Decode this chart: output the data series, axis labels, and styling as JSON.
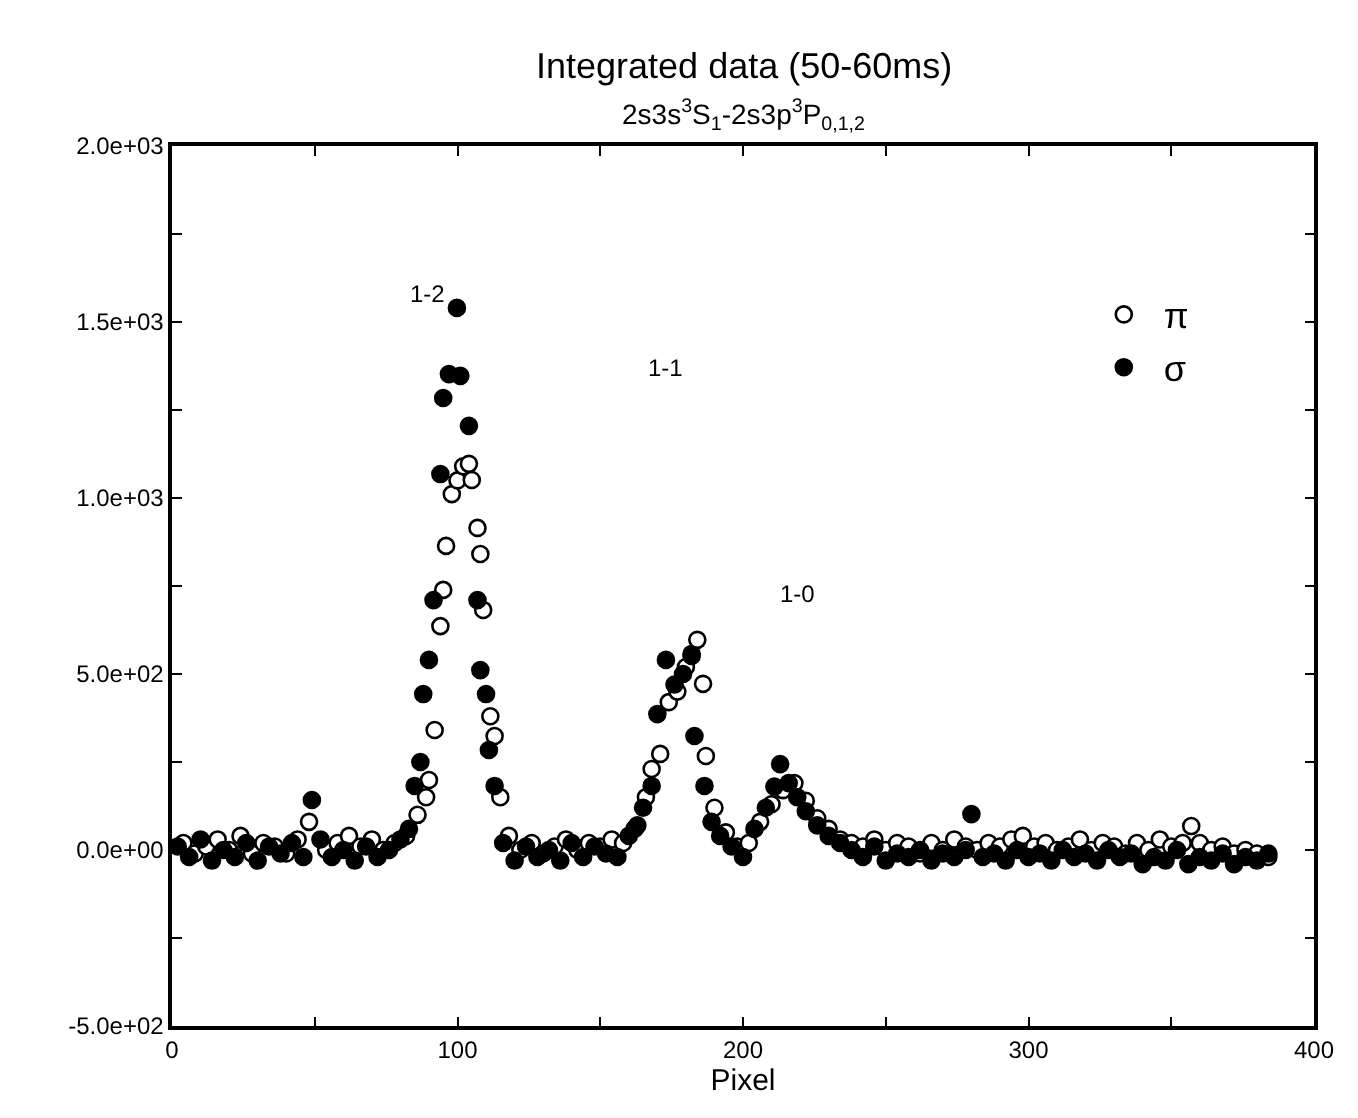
{
  "chart_data": {
    "type": "scatter",
    "title": "Integrated data (50-60ms)",
    "subtitle": "2s3s$^{3}$S$_{1}$-2s3p$^{3}$P$_{0,1,2}$",
    "xlabel": "Pixel",
    "xlim": [
      0,
      400
    ],
    "ylim": [
      -500,
      2000
    ],
    "xticks": [
      0,
      {
        "value": 50,
        "label": null
      },
      100,
      {
        "value": 150,
        "label": null
      },
      200,
      {
        "value": 250,
        "label": null
      },
      300,
      {
        "value": 350,
        "label": null
      },
      400
    ],
    "yticks": [
      {
        "value": -500,
        "label": "-5.0e+02"
      },
      {
        "value": -250,
        "label": null
      },
      {
        "value": 0,
        "label": "0.0e+00"
      },
      {
        "value": 250,
        "label": null
      },
      {
        "value": 500,
        "label": "5.0e+02"
      },
      {
        "value": 750,
        "label": null
      },
      {
        "value": 1000,
        "label": "1.0e+03"
      },
      {
        "value": 1250,
        "label": null
      },
      {
        "value": 1500,
        "label": "1.5e+03"
      },
      {
        "value": 1750,
        "label": null
      },
      {
        "value": 2000,
        "label": "2.0e+03"
      }
    ],
    "legend": "top right",
    "marker": "circle",
    "annotations": [
      "1-2",
      "1-1",
      "1-0"
    ],
    "series": [
      {
        "name": "π",
        "color": "#ffffff",
        "x": [
          4,
          8,
          12,
          16,
          20,
          24,
          28,
          32,
          36,
          40,
          44,
          48,
          54,
          58,
          62,
          66,
          70,
          74,
          78,
          82,
          86,
          89,
          90,
          92,
          94,
          95,
          96,
          98,
          100,
          102,
          104,
          105,
          107,
          108,
          109,
          111.5,
          113,
          115,
          118,
          122,
          126,
          130,
          134,
          138,
          142,
          146,
          150,
          154,
          158,
          162,
          166,
          168,
          171,
          174,
          177,
          180,
          182,
          184,
          186,
          187,
          190,
          194,
          198,
          202,
          206,
          210,
          214,
          218,
          222,
          226,
          230,
          234,
          238,
          242,
          246,
          250,
          254,
          258,
          262,
          266,
          270,
          274,
          278,
          282,
          286,
          290,
          294,
          298,
          302,
          306,
          310,
          314,
          318,
          322,
          326,
          330,
          334,
          338,
          342,
          346,
          350,
          354,
          357,
          360,
          364,
          368,
          372,
          376,
          380,
          384
        ],
        "values": [
          20,
          -10,
          10,
          30,
          0,
          40,
          -10,
          20,
          10,
          -10,
          30,
          80,
          0,
          20,
          40,
          10,
          30,
          0,
          20,
          40,
          100,
          150,
          199,
          341,
          636,
          739,
          864,
          1011,
          1050,
          1090,
          1097,
          1051,
          915,
          841,
          682,
          380,
          324,
          150,
          40,
          0,
          20,
          -10,
          10,
          30,
          0,
          20,
          10,
          30,
          20,
          60,
          150,
          230,
          273,
          420,
          450,
          520,
          557,
          597,
          472,
          267,
          120,
          50,
          10,
          20,
          80,
          130,
          170,
          190,
          140,
          90,
          60,
          30,
          20,
          10,
          30,
          0,
          20,
          10,
          -10,
          20,
          0,
          30,
          10,
          0,
          20,
          10,
          30,
          40,
          10,
          20,
          0,
          10,
          30,
          0,
          20,
          10,
          -10,
          20,
          0,
          30,
          10,
          20,
          68,
          20,
          0,
          10,
          -10,
          0,
          -10,
          -20
        ]
      },
      {
        "name": "σ",
        "color": "#000000",
        "x": [
          2,
          6,
          10,
          14,
          18,
          22,
          26,
          30,
          34,
          38,
          42,
          46,
          49,
          52,
          56,
          60,
          64,
          68,
          72,
          76,
          80,
          83,
          85,
          87,
          88,
          90,
          91.6,
          94,
          95,
          97,
          99.8,
          101,
          104,
          107,
          108,
          110,
          111,
          113,
          116,
          120,
          124,
          128,
          132,
          136,
          140,
          144,
          148,
          152,
          156,
          160,
          163,
          165,
          168,
          170,
          173,
          176,
          179,
          182,
          183,
          186.5,
          189,
          192,
          196,
          200,
          204,
          208,
          211,
          213,
          216,
          219,
          222,
          226,
          230,
          234,
          238,
          242,
          246,
          250,
          254,
          258,
          262,
          266,
          270,
          274,
          278,
          280,
          284,
          288,
          292,
          296,
          300,
          304,
          308,
          312,
          316,
          320,
          324,
          328,
          332,
          336,
          340,
          344,
          348,
          352,
          356,
          360,
          364,
          368,
          372,
          376,
          380,
          384
        ],
        "values": [
          10,
          -20,
          30,
          -30,
          0,
          -20,
          20,
          -30,
          10,
          -10,
          20,
          -20,
          142,
          30,
          -20,
          0,
          -30,
          10,
          -20,
          0,
          30,
          60,
          182,
          250,
          443,
          540,
          710,
          1068,
          1284,
          1352,
          1540,
          1347,
          1205,
          710,
          511,
          443,
          284,
          182,
          20,
          -30,
          10,
          -20,
          0,
          -30,
          20,
          -20,
          10,
          -10,
          -20,
          40,
          70,
          120,
          182,
          386,
          540,
          470,
          500,
          551,
          324,
          182,
          80,
          40,
          10,
          -20,
          60,
          120,
          180,
          244,
          190,
          150,
          110,
          70,
          40,
          20,
          0,
          -20,
          10,
          -30,
          -10,
          -20,
          0,
          -30,
          -10,
          -20,
          0,
          102,
          -20,
          -10,
          -30,
          0,
          -20,
          -10,
          -30,
          0,
          -20,
          -10,
          -30,
          0,
          -20,
          -10,
          -40,
          -20,
          -30,
          0,
          -40,
          -20,
          -30,
          -10,
          -40,
          -20,
          -30,
          -10
        ]
      }
    ]
  }
}
